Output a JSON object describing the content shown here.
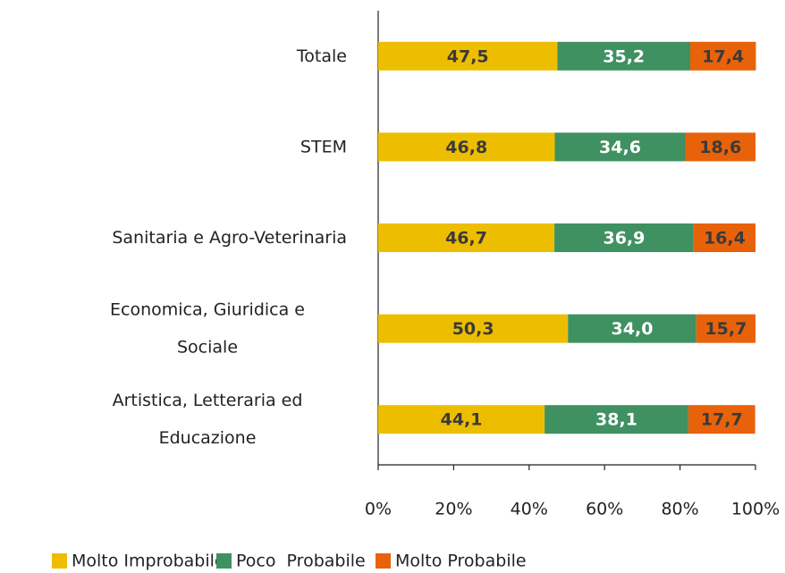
{
  "chart_data": {
    "type": "stacked_barh",
    "categories": [
      "Totale",
      "STEM",
      "Sanitaria e Agro-Veterinaria",
      "Economica, Giuridica e\nSociale",
      "Artistica, Letteraria ed\nEducazione"
    ],
    "series": [
      {
        "name": "Molto Improbabile",
        "color": "#edbe00",
        "label_color": "#3a3a3a",
        "values": [
          47.5,
          46.8,
          46.7,
          50.3,
          44.1
        ],
        "value_labels": [
          "47,5",
          "46,8",
          "46,7",
          "50,3",
          "44,1"
        ]
      },
      {
        "name": "Poco  Probabile",
        "color": "#3f9161",
        "label_color": "#ffffff",
        "values": [
          35.2,
          34.6,
          36.9,
          34.0,
          38.1
        ],
        "value_labels": [
          "35,2",
          "34,6",
          "36,9",
          "34,0",
          "38,1"
        ]
      },
      {
        "name": "Molto Probabile",
        "color": "#e8620a",
        "label_color": "#3a3a3a",
        "values": [
          17.4,
          18.6,
          16.4,
          15.7,
          17.7
        ],
        "value_labels": [
          "17,4",
          "18,6",
          "16,4",
          "15,7",
          "17,7"
        ]
      }
    ],
    "xlim": [
      0,
      100
    ],
    "xticks": [
      {
        "value": 0,
        "label": "0%"
      },
      {
        "value": 20,
        "label": "20%"
      },
      {
        "value": 40,
        "label": "40%"
      },
      {
        "value": 60,
        "label": "60%"
      },
      {
        "value": 80,
        "label": "80%"
      },
      {
        "value": 100,
        "label": "100%"
      }
    ],
    "legend": "bottom"
  }
}
